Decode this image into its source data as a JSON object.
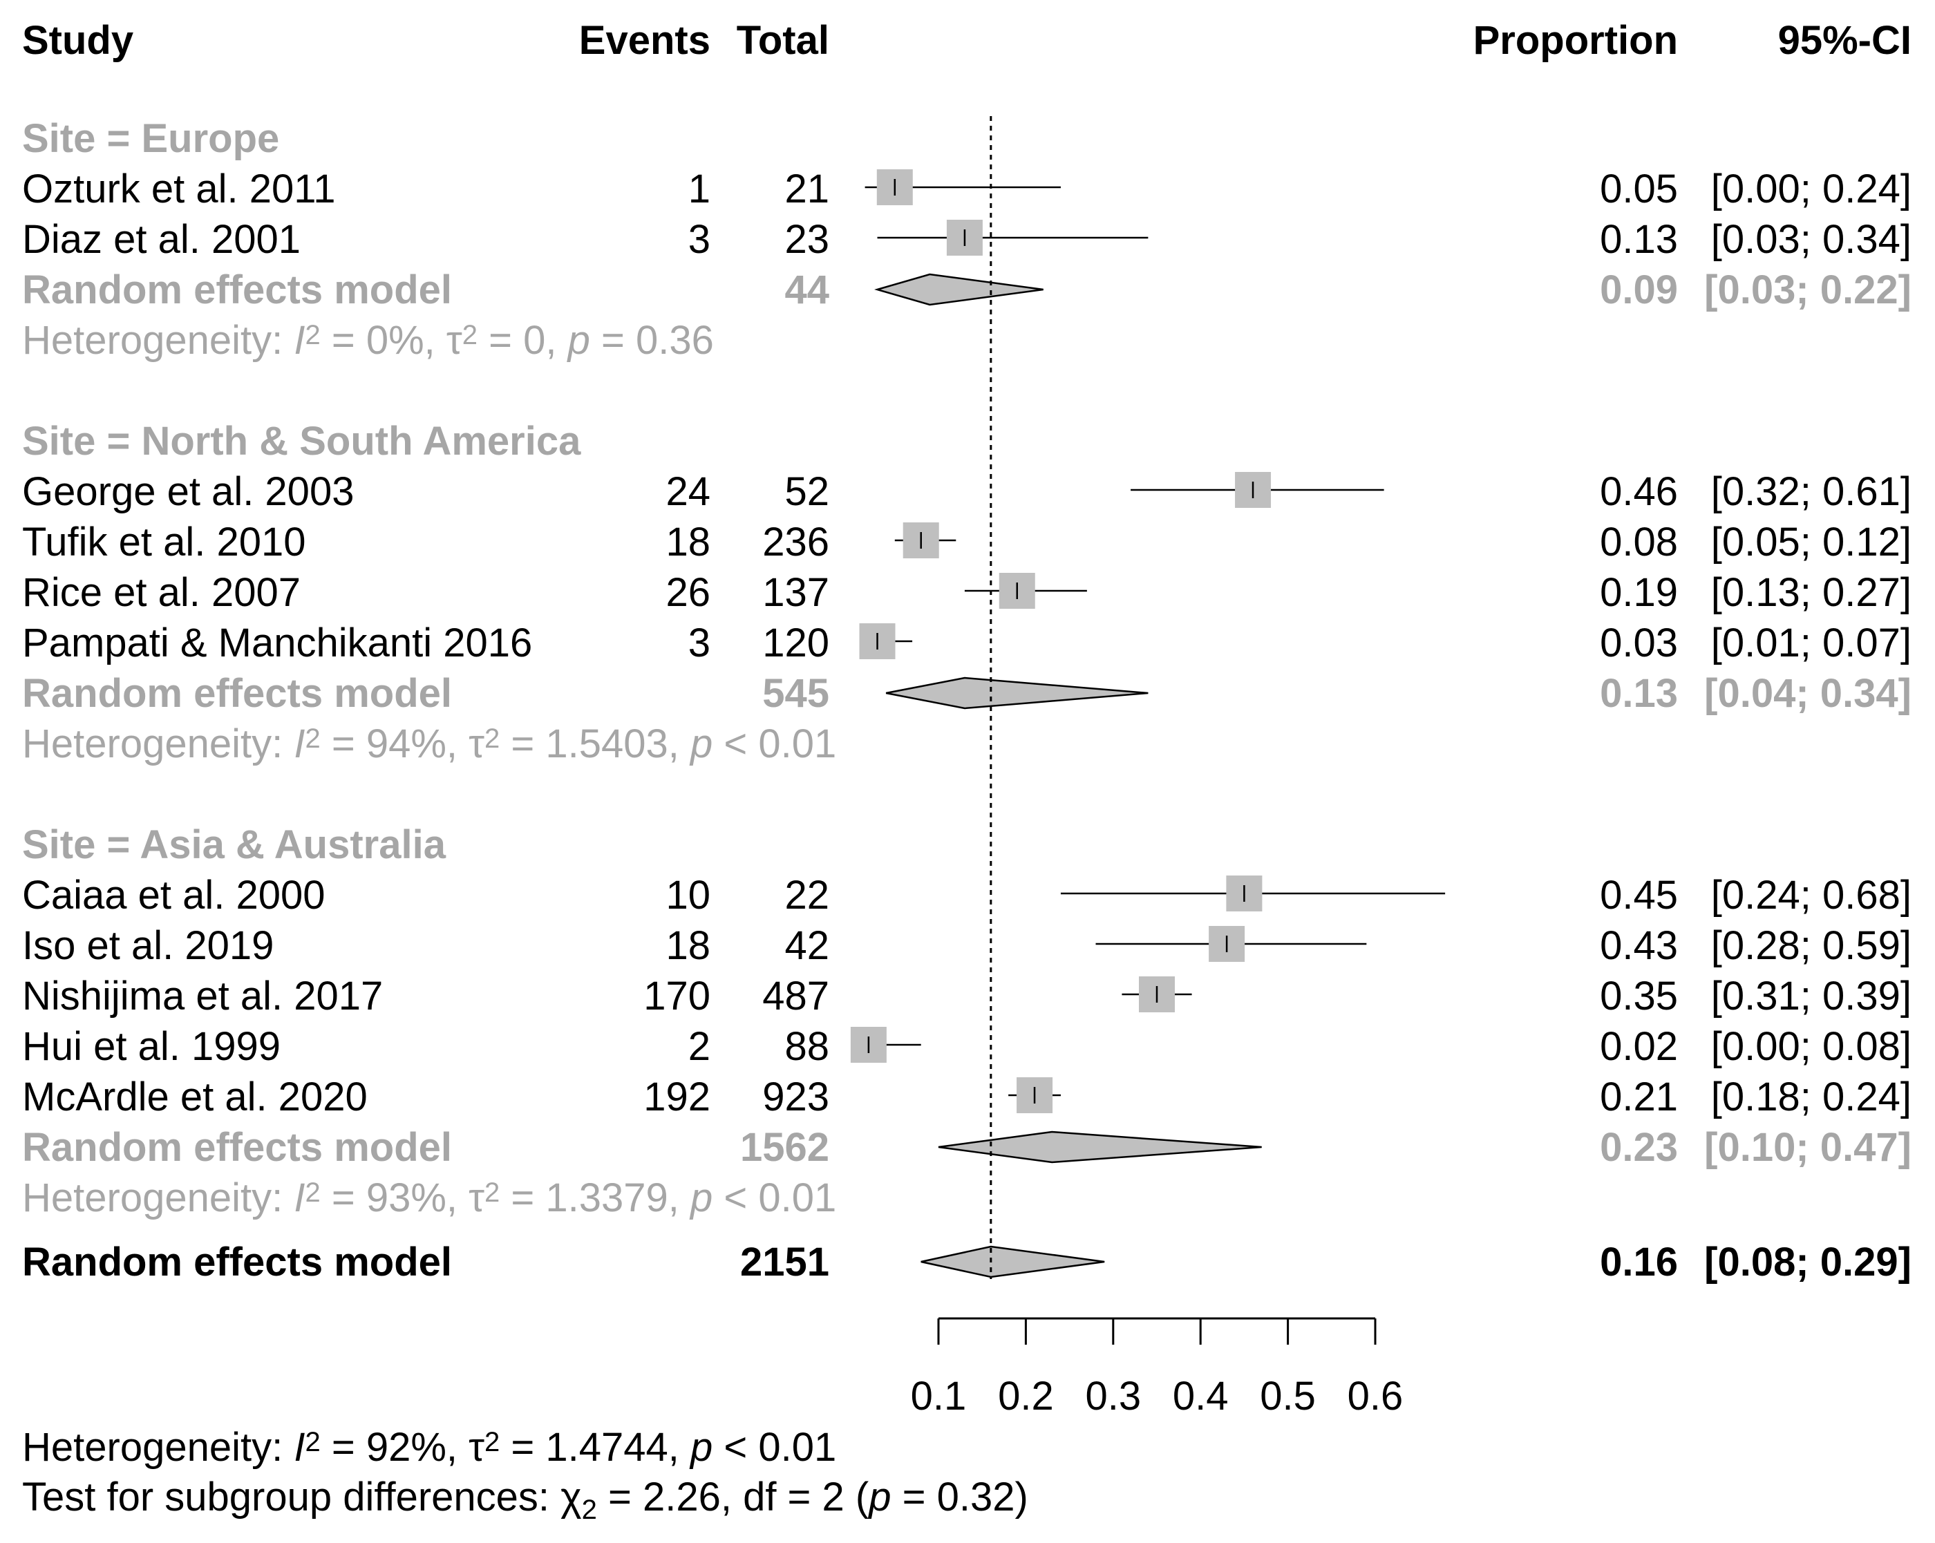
{
  "chart_data": {
    "type": "forest",
    "headers": {
      "study": "Study",
      "events": "Events",
      "total": "Total",
      "proportion": "Proportion",
      "ci": "95%-CI"
    },
    "reference_line": 0.16,
    "x_axis": {
      "ticks": [
        0.1,
        0.2,
        0.3,
        0.4,
        0.5,
        0.6
      ],
      "tick_labels": [
        "0.1",
        "0.2",
        "0.3",
        "0.4",
        "0.5",
        "0.6"
      ],
      "range": [
        0.1,
        0.6
      ]
    },
    "groups": [
      {
        "label": "Site = Europe",
        "studies": [
          {
            "name": "Ozturk et al. 2011",
            "events": "1",
            "total": "21",
            "proportion": 0.05,
            "lower": 0.0,
            "upper": 0.24,
            "prop_text": "0.05",
            "ci_text": "[0.00; 0.24]",
            "weight": 1.0
          },
          {
            "name": "Diaz et al. 2001",
            "events": "3",
            "total": "23",
            "proportion": 0.13,
            "lower": 0.03,
            "upper": 0.34,
            "prop_text": "0.13",
            "ci_text": "[0.03; 0.34]",
            "weight": 1.0
          }
        ],
        "model": {
          "label": "Random effects model",
          "total": "44",
          "estimate": 0.09,
          "lower": 0.03,
          "upper": 0.22,
          "prop_text": "0.09",
          "ci_text": "[0.03; 0.22]"
        },
        "heterogeneity": {
          "prefix": "Heterogeneity: ",
          "i2": "I",
          "i2_value": " = 0%, τ",
          "tau2_value": " = 0, ",
          "p": "p",
          "p_value": " = 0.36"
        }
      },
      {
        "label": "Site = North & South America",
        "studies": [
          {
            "name": "George et al. 2003",
            "events": "24",
            "total": "52",
            "proportion": 0.46,
            "lower": 0.32,
            "upper": 0.61,
            "prop_text": "0.46",
            "ci_text": "[0.32; 0.61]",
            "weight": 1.0
          },
          {
            "name": "Tufik et al. 2010",
            "events": "18",
            "total": "236",
            "proportion": 0.08,
            "lower": 0.05,
            "upper": 0.12,
            "prop_text": "0.08",
            "ci_text": "[0.05; 0.12]",
            "weight": 1.0
          },
          {
            "name": "Rice et al. 2007",
            "events": "26",
            "total": "137",
            "proportion": 0.19,
            "lower": 0.13,
            "upper": 0.27,
            "prop_text": "0.19",
            "ci_text": "[0.13; 0.27]",
            "weight": 1.0
          },
          {
            "name": "Pampati & Manchikanti 2016",
            "events": "3",
            "total": "120",
            "proportion": 0.03,
            "lower": 0.01,
            "upper": 0.07,
            "prop_text": "0.03",
            "ci_text": "[0.01; 0.07]",
            "weight": 1.0
          }
        ],
        "model": {
          "label": "Random effects model",
          "total": "545",
          "estimate": 0.13,
          "lower": 0.04,
          "upper": 0.34,
          "prop_text": "0.13",
          "ci_text": "[0.04; 0.34]"
        },
        "heterogeneity": {
          "prefix": "Heterogeneity: ",
          "i2": "I",
          "i2_value": " = 94%, τ",
          "tau2_value": " = 1.5403, ",
          "p": "p",
          "p_value": " < 0.01"
        }
      },
      {
        "label": "Site = Asia & Australia",
        "studies": [
          {
            "name": "Caiaa et al. 2000",
            "events": "10",
            "total": "22",
            "proportion": 0.45,
            "lower": 0.24,
            "upper": 0.68,
            "prop_text": "0.45",
            "ci_text": "[0.24; 0.68]",
            "weight": 1.0
          },
          {
            "name": "Iso et al. 2019",
            "events": "18",
            "total": "42",
            "proportion": 0.43,
            "lower": 0.28,
            "upper": 0.59,
            "prop_text": "0.43",
            "ci_text": "[0.28; 0.59]",
            "weight": 1.0
          },
          {
            "name": "Nishijima et al. 2017",
            "events": "170",
            "total": "487",
            "proportion": 0.35,
            "lower": 0.31,
            "upper": 0.39,
            "prop_text": "0.35",
            "ci_text": "[0.31; 0.39]",
            "weight": 1.0
          },
          {
            "name": "Hui et al. 1999",
            "events": "2",
            "total": "88",
            "proportion": 0.02,
            "lower": 0.0,
            "upper": 0.08,
            "prop_text": "0.02",
            "ci_text": "[0.00; 0.08]",
            "weight": 1.0
          },
          {
            "name": "McArdle et al. 2020",
            "events": "192",
            "total": "923",
            "proportion": 0.21,
            "lower": 0.18,
            "upper": 0.24,
            "prop_text": "0.21",
            "ci_text": "[0.18; 0.24]",
            "weight": 1.0
          }
        ],
        "model": {
          "label": "Random effects model",
          "total": "1562",
          "estimate": 0.23,
          "lower": 0.1,
          "upper": 0.47,
          "prop_text": "0.23",
          "ci_text": "[0.10; 0.47]"
        },
        "heterogeneity": {
          "prefix": "Heterogeneity: ",
          "i2": "I",
          "i2_value": " = 93%, τ",
          "tau2_value": " = 1.3379, ",
          "p": "p",
          "p_value": " < 0.01"
        }
      }
    ],
    "overall": {
      "label": "Random effects model",
      "total": "2151",
      "estimate": 0.16,
      "lower": 0.08,
      "upper": 0.29,
      "prop_text": "0.16",
      "ci_text": "[0.08; 0.29]"
    },
    "overall_heterogeneity": {
      "prefix": "Heterogeneity: ",
      "i2": "I",
      "i2_value": " = 92%, τ",
      "tau2_value": " = 1.4744, ",
      "p": "p",
      "p_value": " < 0.01"
    },
    "subgroup_test": {
      "prefix": "Test for subgroup differences: ",
      "chi": "χ",
      "chi_sub": "2",
      "chi_value": " = 2.26, df = 2 (",
      "p": "p",
      "p_value": " = 0.32)"
    }
  }
}
